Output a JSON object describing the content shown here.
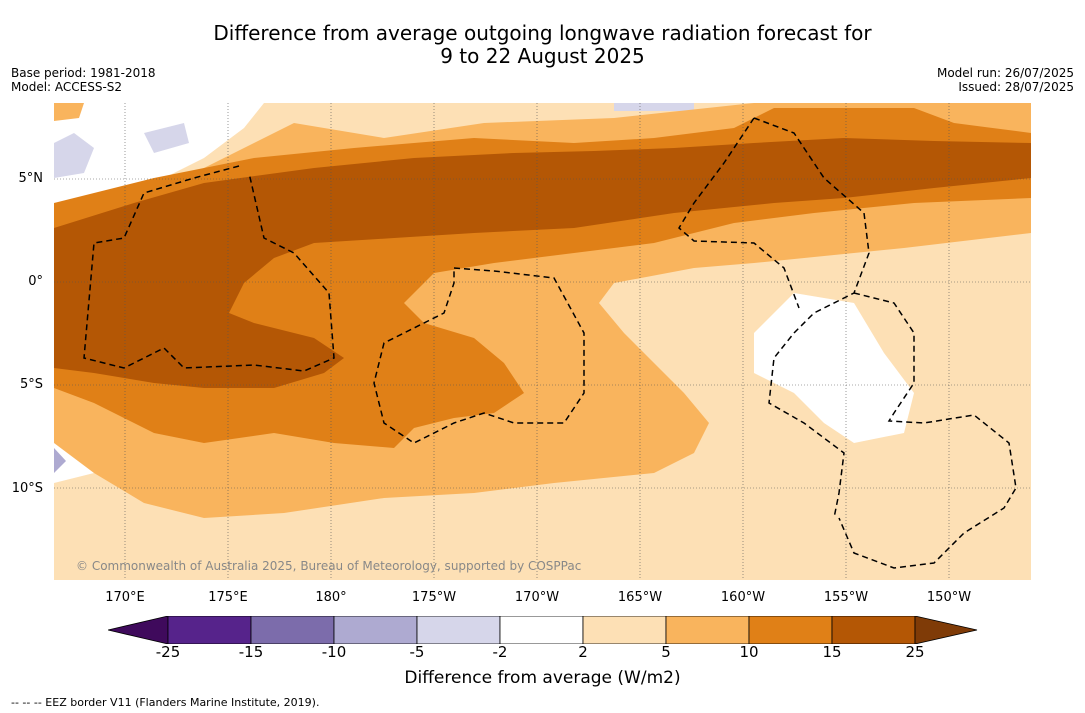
{
  "title": {
    "line1": "Difference from average outgoing longwave radiation forecast for",
    "line2": "9 to 22 August 2025"
  },
  "meta_left": {
    "base_period": "Base period: 1981-2018",
    "model": "Model: ACCESS-S2"
  },
  "meta_right": {
    "model_run": "Model run: 26/07/2025",
    "issued": "Issued: 28/07/2025"
  },
  "map": {
    "lat_labels": [
      "5°N",
      "0°",
      "5°S",
      "10°S"
    ],
    "lon_labels": [
      "170°E",
      "175°E",
      "180°",
      "175°W",
      "170°W",
      "165°W",
      "160°W",
      "155°W",
      "150°W"
    ],
    "copyright": "© Commonwealth of Australia 2025, Bureau of Meteorology, supported by COSPPac"
  },
  "colorbar": {
    "title": "Difference from average (W/m2)",
    "ticks": [
      "-25",
      "-15",
      "-10",
      "-5",
      "-2",
      "2",
      "5",
      "10",
      "15",
      "25"
    ],
    "colors": [
      "#3f0a5c",
      "#56238b",
      "#7c6cab",
      "#aeaad1",
      "#d6d6ea",
      "#ffffff",
      "#fde0b5",
      "#f9b45d",
      "#e08017",
      "#b45705",
      "#7f3b07"
    ]
  },
  "legend_text": "-- -- -- EEZ border V11 (Flanders Marine Institute, 2019)."
}
